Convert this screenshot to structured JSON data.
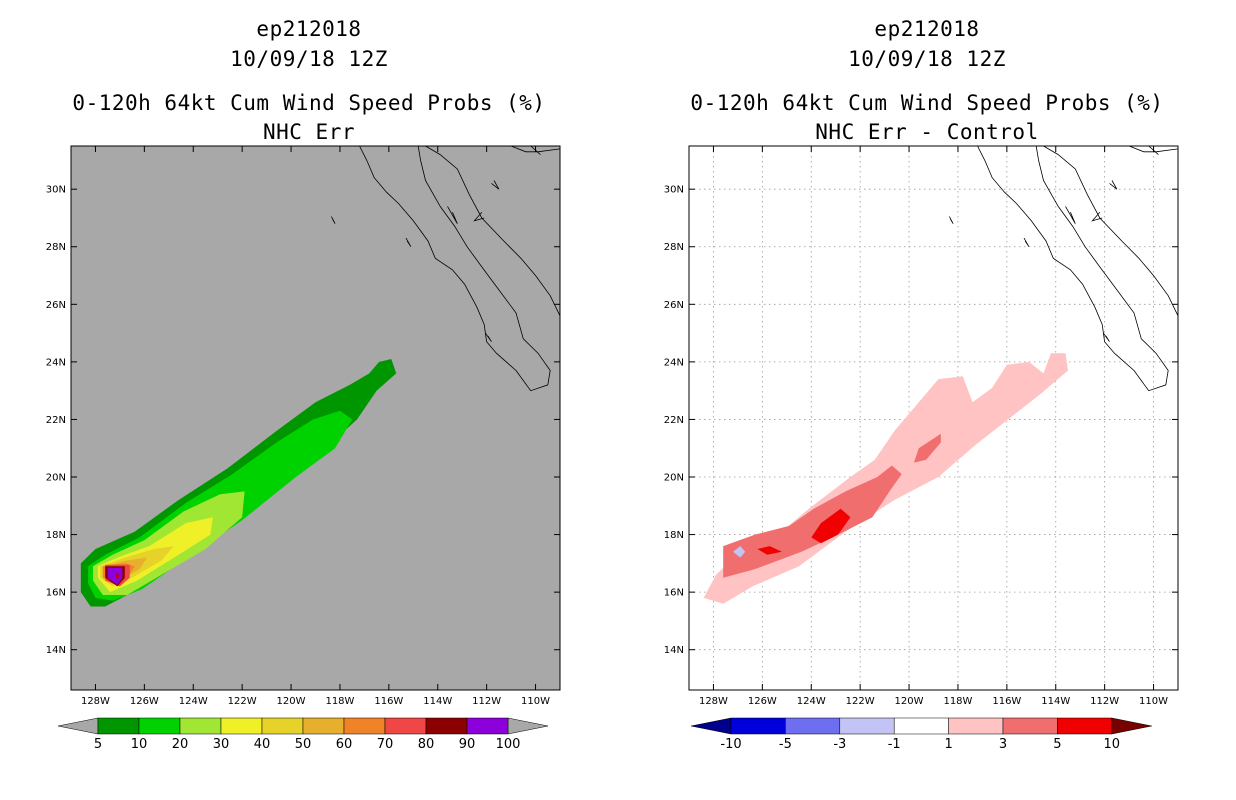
{
  "chart_data": [
    {
      "type": "heatmap",
      "title_lines": [
        "ep212018",
        "10/09/18 12Z",
        "0-120h 64kt Cum Wind Speed Probs (%)",
        "NHC Err"
      ],
      "xlabel": "",
      "ylabel": "",
      "xlim": [
        -129,
        -109
      ],
      "ylim": [
        12.6,
        31.5
      ],
      "x_ticks": [
        -128,
        -126,
        -124,
        -122,
        -120,
        -118,
        -116,
        -114,
        -112,
        -110
      ],
      "x_tick_labels": [
        "128W",
        "126W",
        "124W",
        "122W",
        "120W",
        "118W",
        "116W",
        "114W",
        "112W",
        "110W"
      ],
      "y_ticks": [
        14,
        16,
        18,
        20,
        22,
        24,
        26,
        28,
        30
      ],
      "y_tick_labels": [
        "14N",
        "16N",
        "18N",
        "20N",
        "22N",
        "24N",
        "26N",
        "28N",
        "30N"
      ],
      "grid": false,
      "background": "#a8a8a8",
      "colorbar": {
        "labels": [
          "5",
          "10",
          "20",
          "30",
          "40",
          "50",
          "60",
          "70",
          "80",
          "90",
          "100"
        ],
        "colors": [
          "#009600",
          "#00d200",
          "#a0e632",
          "#f0f028",
          "#e6d228",
          "#e6af2d",
          "#f08228",
          "#f04646",
          "#8c0000",
          "#8c00dc"
        ],
        "under_color": "#a8a8a8",
        "over_color": "#a8a8a8"
      },
      "contour_levels": [
        {
          "level": 5,
          "color": "#009600",
          "lonlat": [
            [
              -128.6,
              16.0
            ],
            [
              -128.6,
              17.0
            ],
            [
              -128.0,
              17.5
            ],
            [
              -126.4,
              18.1
            ],
            [
              -124.6,
              19.2
            ],
            [
              -122.6,
              20.3
            ],
            [
              -120.6,
              21.6
            ],
            [
              -119.0,
              22.6
            ],
            [
              -117.6,
              23.2
            ],
            [
              -116.8,
              23.6
            ],
            [
              -116.4,
              24.0
            ],
            [
              -115.9,
              24.1
            ],
            [
              -115.7,
              23.6
            ],
            [
              -116.5,
              23.0
            ],
            [
              -117.3,
              22.0
            ],
            [
              -118.6,
              21.0
            ],
            [
              -120.8,
              19.8
            ],
            [
              -123.2,
              18.3
            ],
            [
              -125.4,
              16.9
            ],
            [
              -126.7,
              15.9
            ],
            [
              -127.6,
              15.5
            ],
            [
              -128.2,
              15.5
            ]
          ]
        },
        {
          "level": 10,
          "color": "#00d200",
          "lonlat": [
            [
              -128.3,
              16.3
            ],
            [
              -128.3,
              16.9
            ],
            [
              -127.6,
              17.3
            ],
            [
              -126.2,
              17.9
            ],
            [
              -124.3,
              19.1
            ],
            [
              -122.4,
              20.1
            ],
            [
              -120.6,
              21.2
            ],
            [
              -119.1,
              22.0
            ],
            [
              -118.0,
              22.3
            ],
            [
              -117.5,
              22.0
            ],
            [
              -118.2,
              21.0
            ],
            [
              -119.8,
              20.0
            ],
            [
              -122.0,
              18.5
            ],
            [
              -124.4,
              17.1
            ],
            [
              -126.1,
              16.1
            ],
            [
              -127.3,
              15.7
            ],
            [
              -128.0,
              15.8
            ]
          ]
        },
        {
          "level": 20,
          "color": "#a0e632",
          "lonlat": [
            [
              -128.1,
              16.4
            ],
            [
              -128.1,
              16.9
            ],
            [
              -127.3,
              17.3
            ],
            [
              -126.0,
              17.8
            ],
            [
              -124.4,
              18.8
            ],
            [
              -122.9,
              19.4
            ],
            [
              -121.9,
              19.5
            ],
            [
              -122.0,
              18.6
            ],
            [
              -123.5,
              17.5
            ],
            [
              -125.3,
              16.6
            ],
            [
              -126.7,
              15.9
            ],
            [
              -127.7,
              15.9
            ]
          ]
        },
        {
          "level": 30,
          "color": "#f0f028",
          "lonlat": [
            [
              -127.9,
              16.5
            ],
            [
              -127.9,
              16.9
            ],
            [
              -127.1,
              17.2
            ],
            [
              -125.8,
              17.6
            ],
            [
              -124.3,
              18.4
            ],
            [
              -123.2,
              18.6
            ],
            [
              -123.3,
              18.0
            ],
            [
              -124.6,
              17.3
            ],
            [
              -126.3,
              16.4
            ],
            [
              -127.4,
              16.0
            ]
          ]
        },
        {
          "level": 40,
          "color": "#e6d228",
          "lonlat": [
            [
              -127.8,
              16.5
            ],
            [
              -127.8,
              16.9
            ],
            [
              -126.8,
              17.2
            ],
            [
              -125.6,
              17.5
            ],
            [
              -124.8,
              17.6
            ],
            [
              -125.3,
              17.1
            ],
            [
              -126.5,
              16.5
            ],
            [
              -127.3,
              16.2
            ]
          ]
        },
        {
          "level": 50,
          "color": "#e6af2d",
          "lonlat": [
            [
              -127.7,
              16.5
            ],
            [
              -127.7,
              16.9
            ],
            [
              -126.7,
              17.1
            ],
            [
              -125.9,
              17.2
            ],
            [
              -126.2,
              16.8
            ],
            [
              -127.0,
              16.4
            ]
          ]
        },
        {
          "level": 60,
          "color": "#f08228",
          "lonlat": [
            [
              -127.7,
              16.5
            ],
            [
              -127.7,
              16.9
            ],
            [
              -126.8,
              17.0
            ],
            [
              -126.4,
              16.9
            ],
            [
              -126.7,
              16.5
            ],
            [
              -127.2,
              16.3
            ]
          ]
        },
        {
          "level": 70,
          "color": "#f04646",
          "lonlat": [
            [
              -127.6,
              16.4
            ],
            [
              -127.6,
              16.95
            ],
            [
              -126.6,
              16.95
            ],
            [
              -126.6,
              16.5
            ],
            [
              -127.0,
              16.2
            ]
          ]
        },
        {
          "level": 80,
          "color": "#8c0000",
          "lonlat": [
            [
              -127.6,
              16.5
            ],
            [
              -127.6,
              16.9
            ],
            [
              -126.8,
              16.9
            ],
            [
              -126.8,
              16.5
            ],
            [
              -127.1,
              16.2
            ]
          ]
        },
        {
          "level": 90,
          "color": "#8c00dc",
          "lonlat": [
            [
              -127.5,
              16.5
            ],
            [
              -127.5,
              16.85
            ],
            [
              -126.9,
              16.85
            ],
            [
              -126.9,
              16.5
            ],
            [
              -127.1,
              16.25
            ]
          ]
        }
      ]
    },
    {
      "type": "heatmap",
      "title_lines": [
        "ep212018",
        "10/09/18 12Z",
        "0-120h 64kt Cum Wind Speed Probs (%)",
        "NHC Err - Control"
      ],
      "xlabel": "",
      "ylabel": "",
      "xlim": [
        -129,
        -109
      ],
      "ylim": [
        12.6,
        31.5
      ],
      "x_ticks": [
        -128,
        -126,
        -124,
        -122,
        -120,
        -118,
        -116,
        -114,
        -112,
        -110
      ],
      "x_tick_labels": [
        "128W",
        "126W",
        "124W",
        "122W",
        "120W",
        "118W",
        "116W",
        "114W",
        "112W",
        "110W"
      ],
      "y_ticks": [
        14,
        16,
        18,
        20,
        22,
        24,
        26,
        28,
        30
      ],
      "y_tick_labels": [
        "14N",
        "16N",
        "18N",
        "20N",
        "22N",
        "24N",
        "26N",
        "28N",
        "30N"
      ],
      "grid": true,
      "background": "#ffffff",
      "colorbar": {
        "labels": [
          "-10",
          "-5",
          "-3",
          "-1",
          "1",
          "3",
          "5",
          "10"
        ],
        "colors": [
          "#0000dc",
          "#6e6ef0",
          "#c3c3f5",
          "#ffffff",
          "#ffc3c3",
          "#f06e6e",
          "#f00000"
        ],
        "under_color": "#00008c",
        "over_color": "#780000"
      },
      "contour_levels": [
        {
          "level": 1,
          "color": "#ffc3c3",
          "lonlat": [
            [
              -128.4,
              15.8
            ],
            [
              -127.9,
              16.6
            ],
            [
              -126.8,
              17.5
            ],
            [
              -125.5,
              17.9
            ],
            [
              -124.1,
              18.9
            ],
            [
              -122.4,
              20.0
            ],
            [
              -121.4,
              20.6
            ],
            [
              -120.6,
              21.6
            ],
            [
              -119.6,
              22.6
            ],
            [
              -118.8,
              23.4
            ],
            [
              -117.8,
              23.5
            ],
            [
              -117.4,
              22.6
            ],
            [
              -116.6,
              23.1
            ],
            [
              -116.0,
              23.9
            ],
            [
              -115.1,
              24.0
            ],
            [
              -114.5,
              23.6
            ],
            [
              -114.2,
              24.3
            ],
            [
              -113.6,
              24.3
            ],
            [
              -113.5,
              23.7
            ],
            [
              -114.6,
              22.9
            ],
            [
              -115.8,
              22.1
            ],
            [
              -117.3,
              21.1
            ],
            [
              -118.8,
              20.0
            ],
            [
              -120.6,
              19.2
            ],
            [
              -122.6,
              18.1
            ],
            [
              -124.5,
              16.9
            ],
            [
              -126.4,
              16.2
            ],
            [
              -127.6,
              15.6
            ]
          ]
        },
        {
          "level": 3,
          "color": "#f06e6e",
          "lonlat": [
            [
              -127.6,
              16.5
            ],
            [
              -127.6,
              17.6
            ],
            [
              -126.3,
              18.0
            ],
            [
              -124.9,
              18.3
            ],
            [
              -123.9,
              18.9
            ],
            [
              -122.6,
              19.5
            ],
            [
              -121.3,
              20.0
            ],
            [
              -120.7,
              20.4
            ],
            [
              -120.3,
              20.1
            ],
            [
              -120.8,
              19.5
            ],
            [
              -121.5,
              18.6
            ],
            [
              -122.9,
              18.0
            ],
            [
              -124.4,
              17.4
            ],
            [
              -126.3,
              16.8
            ]
          ]
        },
        {
          "level": 3,
          "color": "#f06e6e",
          "lonlat": [
            [
              -119.8,
              20.5
            ],
            [
              -119.6,
              21.0
            ],
            [
              -118.7,
              21.5
            ],
            [
              -118.7,
              21.2
            ],
            [
              -119.3,
              20.6
            ]
          ]
        },
        {
          "level": 5,
          "color": "#f00000",
          "lonlat": [
            [
              -124.0,
              17.9
            ],
            [
              -123.6,
              18.4
            ],
            [
              -122.8,
              18.9
            ],
            [
              -122.4,
              18.6
            ],
            [
              -122.9,
              18.0
            ],
            [
              -123.6,
              17.7
            ]
          ]
        },
        {
          "level": 5,
          "color": "#f00000",
          "lonlat": [
            [
              -126.2,
              17.5
            ],
            [
              -125.7,
              17.6
            ],
            [
              -125.2,
              17.4
            ],
            [
              -125.8,
              17.3
            ]
          ]
        },
        {
          "level": -1,
          "color": "#c3c3f5",
          "lonlat": [
            [
              -127.2,
              17.4
            ],
            [
              -126.9,
              17.6
            ],
            [
              -126.7,
              17.4
            ],
            [
              -126.9,
              17.2
            ]
          ]
        }
      ]
    }
  ]
}
